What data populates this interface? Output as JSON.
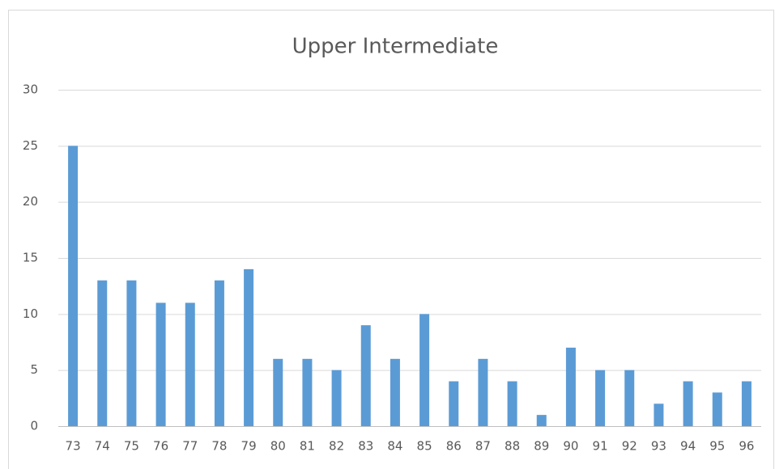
{
  "chart_data": {
    "type": "bar",
    "title": "Upper Intermediate",
    "categories": [
      "73",
      "74",
      "75",
      "76",
      "77",
      "78",
      "79",
      "80",
      "81",
      "82",
      "83",
      "84",
      "85",
      "86",
      "87",
      "88",
      "89",
      "90",
      "91",
      "92",
      "93",
      "94",
      "95",
      "96"
    ],
    "values": [
      25,
      13,
      13,
      11,
      11,
      13,
      14,
      6,
      6,
      5,
      9,
      6,
      10,
      4,
      6,
      4,
      1,
      7,
      5,
      5,
      2,
      4,
      3,
      4
    ],
    "color": "#5b9bd5",
    "ylim": [
      0,
      30
    ],
    "yticks": [
      0,
      5,
      10,
      15,
      20,
      25,
      30
    ],
    "grid": true
  }
}
